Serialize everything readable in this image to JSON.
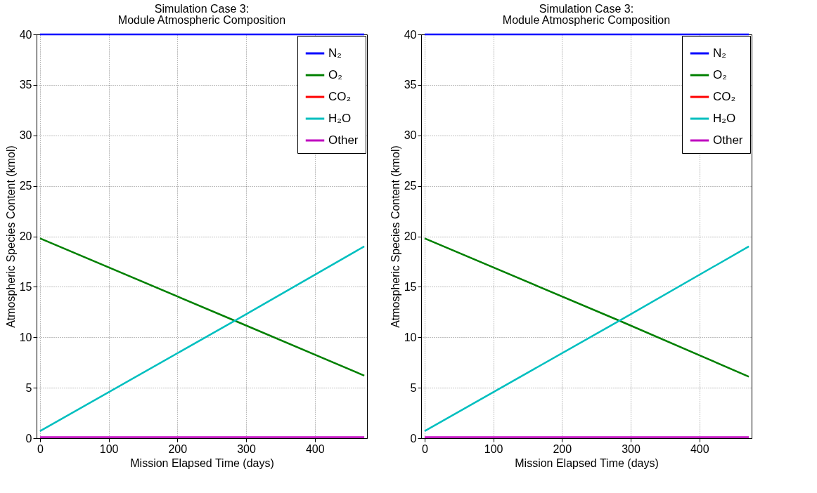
{
  "chart_data": [
    {
      "type": "line",
      "title": "Simulation Case 3:",
      "subtitle": "Module Atmospheric Composition",
      "xlabel": "Mission Elapsed Time (days)",
      "ylabel": "Atmospheric Species Content (kmol)",
      "x": [
        0,
        285,
        472
      ],
      "series": [
        {
          "name": "N₂",
          "color": "#0000ff",
          "values": [
            40,
            40,
            40
          ]
        },
        {
          "name": "O₂",
          "color": "#008000",
          "values": [
            19.8,
            11.6,
            6.2
          ]
        },
        {
          "name": "CO₂",
          "color": "#ff0000",
          "values": [
            null,
            null,
            null
          ]
        },
        {
          "name": "H₂O",
          "color": "#00bfbf",
          "values": [
            0.7,
            11.7,
            19.0
          ]
        },
        {
          "name": "Other",
          "color": "#bf00bf",
          "values": [
            0.1,
            0.1,
            0.1
          ]
        }
      ],
      "xlim": [
        -5,
        476
      ],
      "xticks": [
        0,
        100,
        200,
        300,
        400
      ],
      "ylim": [
        0,
        40
      ],
      "yticks": [
        0,
        5,
        10,
        15,
        20,
        25,
        30,
        35,
        40
      ],
      "grid": true,
      "legend": "top right"
    },
    {
      "type": "line",
      "title": "Simulation Case 3:",
      "subtitle": "Module Atmospheric Composition",
      "xlabel": "Mission Elapsed Time (days)",
      "ylabel": "Atmospheric Species Content (kmol)",
      "x": [
        0,
        285,
        472
      ],
      "series": [
        {
          "name": "N₂",
          "color": "#0000ff",
          "values": [
            40,
            40,
            40
          ]
        },
        {
          "name": "O₂",
          "color": "#008000",
          "values": [
            19.8,
            11.6,
            6.1
          ]
        },
        {
          "name": "CO₂",
          "color": "#ff0000",
          "values": [
            null,
            null,
            null
          ]
        },
        {
          "name": "H₂O",
          "color": "#00bfbf",
          "values": [
            0.7,
            11.7,
            19.0
          ]
        },
        {
          "name": "Other",
          "color": "#bf00bf",
          "values": [
            0.1,
            0.1,
            0.1
          ]
        }
      ],
      "xlim": [
        -5,
        476
      ],
      "xticks": [
        0,
        100,
        200,
        300,
        400
      ],
      "ylim": [
        0,
        40
      ],
      "yticks": [
        0,
        5,
        10,
        15,
        20,
        25,
        30,
        35,
        40
      ],
      "grid": true,
      "legend": "top right"
    }
  ]
}
